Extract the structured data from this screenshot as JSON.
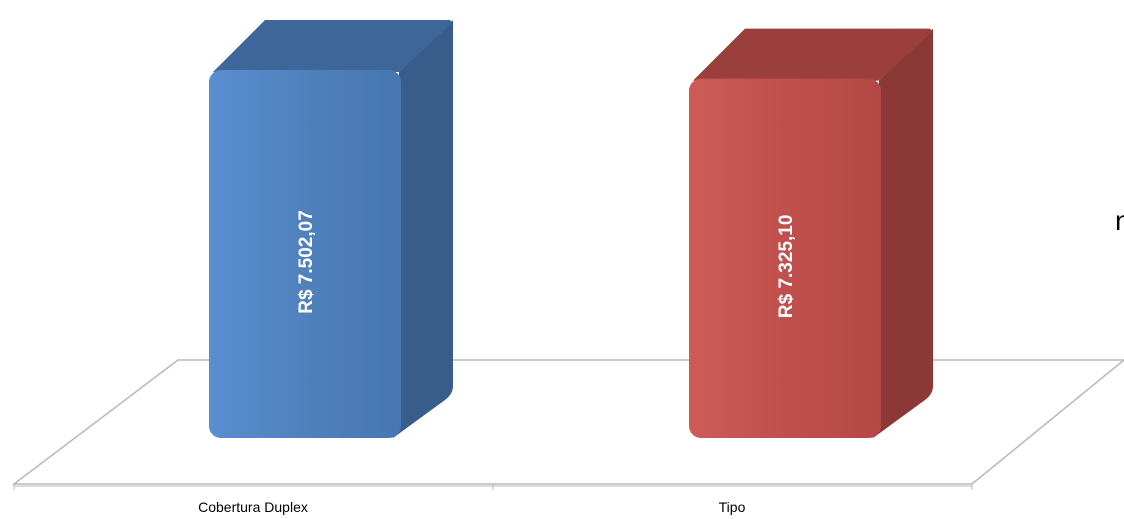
{
  "chart_data": {
    "type": "bar",
    "style": "3d",
    "categories": [
      "Cobertura Duplex",
      "Tipo"
    ],
    "series": [
      {
        "values": [
          7502.07,
          7325.1
        ]
      }
    ],
    "data_labels": [
      "R$ 7.502,07",
      "R$ 7.325,10"
    ],
    "colors": [
      "#4F81BD",
      "#C0504D"
    ],
    "side_colors": [
      "#385D8A",
      "#8C3836"
    ],
    "top_colors": [
      "#3E6699",
      "#9B3F3C"
    ],
    "title": "",
    "xlabel": "",
    "ylabel": "",
    "grid": false,
    "legend": "none"
  },
  "edge_text": "n"
}
